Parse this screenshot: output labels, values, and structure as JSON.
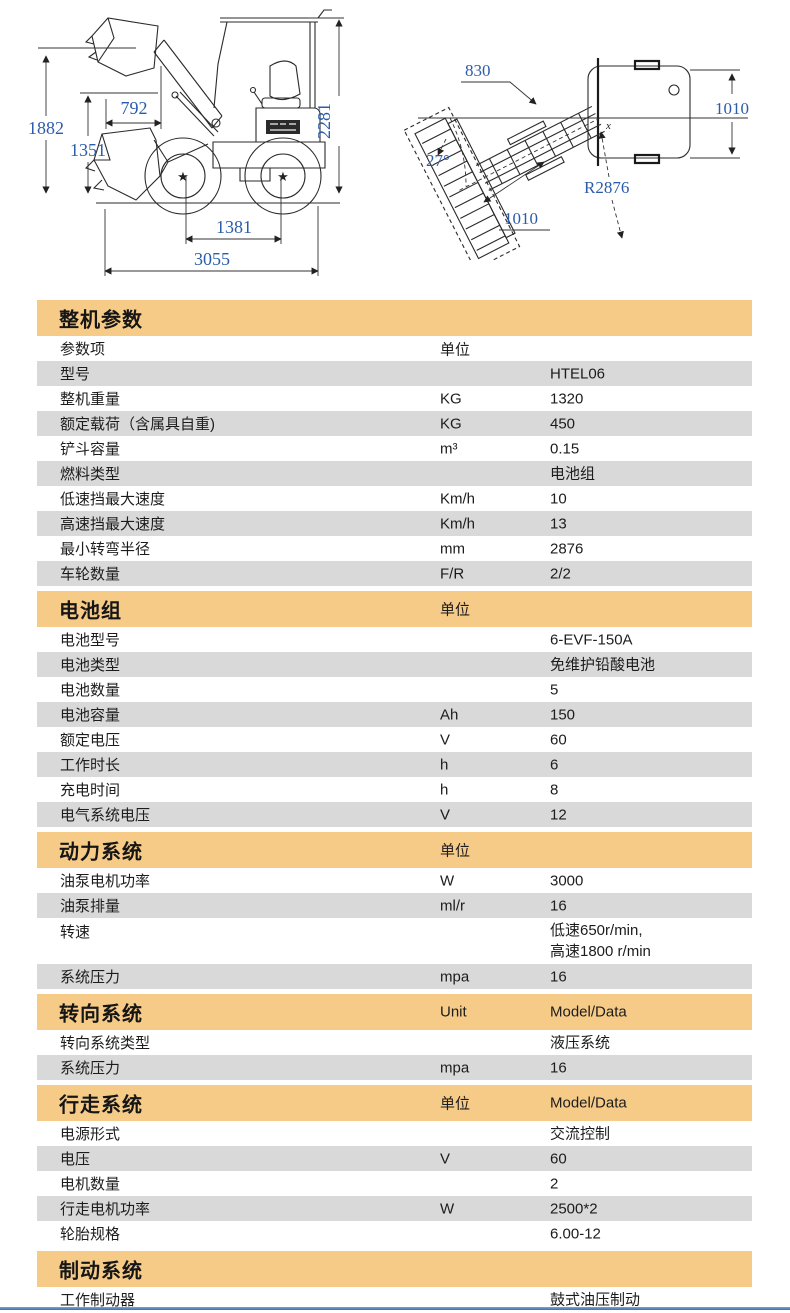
{
  "theme": {
    "header_orange": "#f6cb87",
    "row_gray": "#d9d9d9",
    "dimension_blue": "#2b5ca8",
    "footer_line_blue": "#4f81bd"
  },
  "drawings": {
    "side_view": {
      "max_height": "1882",
      "dump_reach": "792",
      "dump_height": "1351",
      "overall_height": "2281",
      "wheelbase": "1381",
      "overall_length": "3055"
    },
    "top_view": {
      "front_frame_width": "830",
      "body_width": "1010",
      "steer_angle": "27°",
      "turn_radius": "R2876",
      "bucket_width": "1010"
    }
  },
  "sections": [
    {
      "title": "整机参数",
      "unit_header": "",
      "value_header": "",
      "rows": [
        {
          "label": "参数项",
          "unit": "单位",
          "value": "",
          "shade": false
        },
        {
          "label": "型号",
          "unit": "",
          "value": "HTEL06",
          "shade": true
        },
        {
          "label": "整机重量",
          "unit": "KG",
          "value": "1320",
          "shade": false
        },
        {
          "label": "额定载荷（含属具自重)",
          "unit": "KG",
          "value": "450",
          "shade": true
        },
        {
          "label": "铲斗容量",
          "unit": "m³",
          "value": "0.15",
          "shade": false
        },
        {
          "label": "燃料类型",
          "unit": "",
          "value": "电池组",
          "shade": true
        },
        {
          "label": "低速挡最大速度",
          "unit": "Km/h",
          "value": "10",
          "shade": false
        },
        {
          "label": "高速挡最大速度",
          "unit": "Km/h",
          "value": "13",
          "shade": true
        },
        {
          "label": "最小转弯半径",
          "unit": "mm",
          "value": "2876",
          "shade": false
        },
        {
          "label": "车轮数量",
          "unit": "F/R",
          "value": "2/2",
          "shade": true
        }
      ]
    },
    {
      "title": "电池组",
      "unit_header": "单位",
      "value_header": "",
      "rows": [
        {
          "label": "电池型号",
          "unit": "",
          "value": "6-EVF-150A",
          "shade": false
        },
        {
          "label": "电池类型",
          "unit": "",
          "value": "免维护铅酸电池",
          "shade": true
        },
        {
          "label": "电池数量",
          "unit": "",
          "value": "5",
          "shade": false
        },
        {
          "label": "电池容量",
          "unit": "Ah",
          "value": "150",
          "shade": true
        },
        {
          "label": "额定电压",
          "unit": "V",
          "value": "60",
          "shade": false
        },
        {
          "label": "工作时长",
          "unit": "h",
          "value": "6",
          "shade": true
        },
        {
          "label": "充电时间",
          "unit": "h",
          "value": "8",
          "shade": false
        },
        {
          "label": "电气系统电压",
          "unit": "V",
          "value": "12",
          "shade": true
        }
      ]
    },
    {
      "title": "动力系统",
      "unit_header": "单位",
      "value_header": "",
      "rows": [
        {
          "label": "油泵电机功率",
          "unit": "W",
          "value": "3000",
          "shade": false
        },
        {
          "label": "油泵排量",
          "unit": "ml/r",
          "value": "16",
          "shade": true
        },
        {
          "label": "转速",
          "unit": "",
          "value": "低速650r/min,",
          "value2": "高速1800 r/min",
          "shade": false
        },
        {
          "label": "系统压力",
          "unit": "mpa",
          "value": "16",
          "shade": true
        }
      ]
    },
    {
      "title": "转向系统",
      "unit_header": "Unit",
      "value_header": "Model/Data",
      "rows": [
        {
          "label": "转向系统类型",
          "unit": "",
          "value": "液压系统",
          "shade": false
        },
        {
          "label": "系统压力",
          "unit": "mpa",
          "value": "16",
          "shade": true
        }
      ]
    },
    {
      "title": "行走系统",
      "unit_header": "单位",
      "value_header": "Model/Data",
      "rows": [
        {
          "label": "电源形式",
          "unit": "",
          "value": "交流控制",
          "shade": false
        },
        {
          "label": "电压",
          "unit": "V",
          "value": "60",
          "shade": true
        },
        {
          "label": "电机数量",
          "unit": "",
          "value": "2",
          "shade": false
        },
        {
          "label": "行走电机功率",
          "unit": "W",
          "value": "2500*2",
          "shade": true
        },
        {
          "label": "轮胎规格",
          "unit": "",
          "value": "6.00-12",
          "shade": false
        }
      ]
    },
    {
      "title": "制动系统",
      "unit_header": "",
      "value_header": "",
      "rows": [
        {
          "label": "工作制动器",
          "unit": "",
          "value": "鼓式油压制动",
          "shade": false
        }
      ]
    }
  ]
}
